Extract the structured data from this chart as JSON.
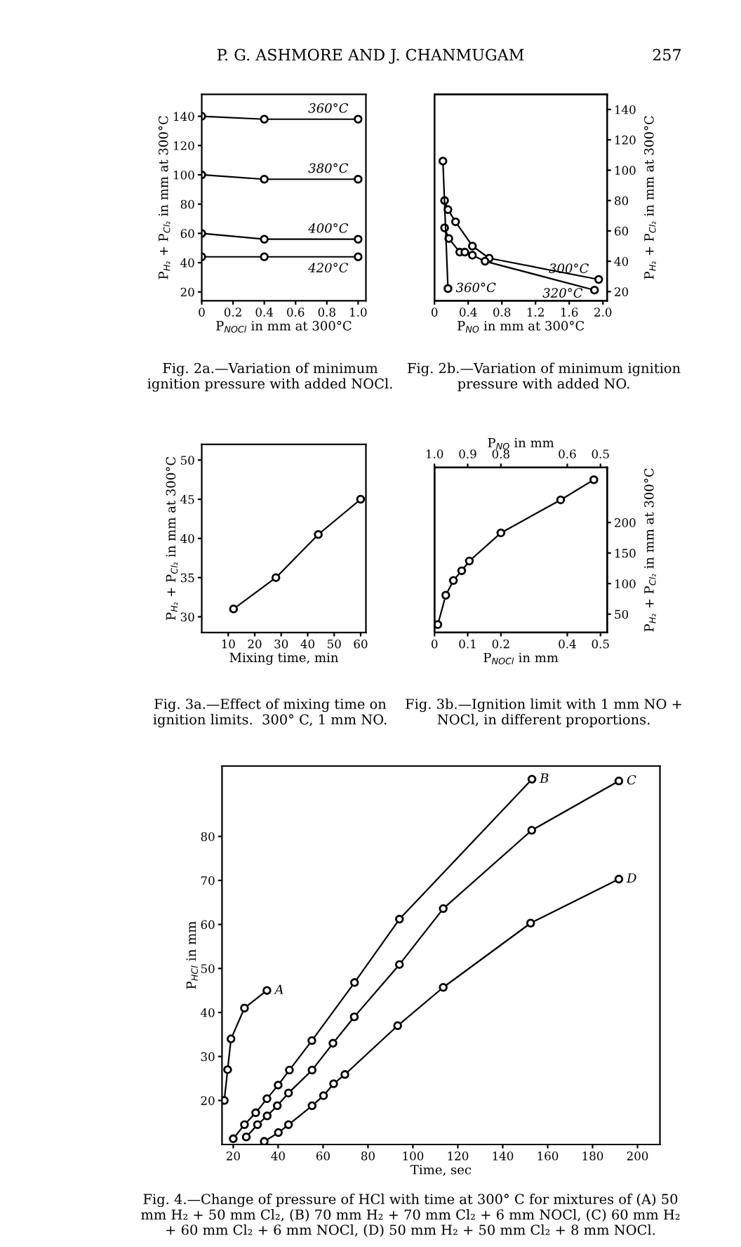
{
  "chart_data": [
    {
      "type": "line",
      "title": "Fig. 2a.—Variation of minimum ignition pressure with added NOCl.",
      "annotations": [
        "P. G. ASHMORE AND J. CHANMUGAM",
        "257"
      ],
      "xlabel": "P$_{NOCl}$ in mm at 300°C",
      "ylabel": "P$_{H₂}$ + P$_{Cl₂}$ in mm at 300°C",
      "marker": "circle",
      "line_style": "solid",
      "xlim": [
        0,
        1.05
      ],
      "xticks": [
        0,
        0.2,
        0.4,
        0.6,
        0.8,
        {
          "value": 1.0,
          "label": "1.0"
        }
      ],
      "ylim": [
        14,
        155
      ],
      "yticks": [
        20,
        40,
        60,
        80,
        100,
        120,
        140
      ],
      "series": [
        {
          "name": "360°C",
          "color": "#000000",
          "x": [
            0,
            0.4,
            1.0
          ],
          "values": [
            140,
            138,
            138
          ]
        },
        {
          "name": "380°C",
          "color": "#000000",
          "x": [
            0,
            0.4,
            1.0
          ],
          "values": [
            100,
            97,
            97
          ]
        },
        {
          "name": "400°C",
          "color": "#000000",
          "x": [
            0,
            0.4,
            1.0
          ],
          "values": [
            60,
            56,
            56
          ]
        },
        {
          "name": "420°C",
          "color": "#000000",
          "x": [
            0,
            0.4,
            1.0
          ],
          "values": [
            44,
            44,
            44
          ]
        }
      ]
    },
    {
      "type": "line",
      "title": "Fig. 2b.—Variation of minimum ignition pressure with added NO.",
      "xlabel": "P$_{NO}$ in mm at 300°C",
      "y2label": "P$_{H₂}$ + P$_{Cl₂}$ in mm at 300°C",
      "marker": "circle",
      "line_style": "solid",
      "xlim": [
        0,
        2.05
      ],
      "xticks": [
        0,
        0.4,
        0.8,
        1.2,
        1.6,
        {
          "value": 2.0,
          "label": "2.0"
        }
      ],
      "y2lim": [
        14,
        150
      ],
      "y2ticks": [
        20,
        40,
        60,
        80,
        100,
        120,
        140
      ],
      "series": [
        {
          "name": "300°C",
          "color": "#000000",
          "axis": "y2",
          "x": [
            0.12,
            0.16,
            0.25,
            0.45,
            0.65,
            1.95
          ],
          "values": [
            80,
            74,
            66,
            50,
            42,
            28
          ]
        },
        {
          "name": "320°C",
          "color": "#000000",
          "axis": "y2",
          "x": [
            0.12,
            0.17,
            0.3,
            0.36,
            0.45,
            0.6,
            1.9
          ],
          "values": [
            62,
            55,
            46,
            46,
            44,
            40,
            21
          ]
        },
        {
          "name": "360°C",
          "color": "#000000",
          "axis": "y2",
          "x": [
            0.1,
            0.16
          ],
          "values": [
            106,
            22
          ]
        }
      ]
    },
    {
      "type": "line",
      "title": "Fig. 3a.—Effect of mixing time on ignition limits.  300° C, 1 mm NO.",
      "xlabel": "Mixing time, min",
      "ylabel": "P$_{H₂}$ + P$_{Cl₂}$ in mm at 300°C",
      "marker": "circle",
      "line_style": "solid",
      "xlim": [
        0,
        62
      ],
      "xticks": [
        10,
        20,
        30,
        40,
        50,
        60
      ],
      "ylim": [
        28,
        52
      ],
      "yticks": [
        30,
        35,
        40,
        45,
        50
      ],
      "series": [
        {
          "color": "#000000",
          "x": [
            12,
            28,
            44,
            60
          ],
          "values": [
            31,
            35,
            40.5,
            45
          ]
        }
      ]
    },
    {
      "type": "line",
      "title": "Fig. 3b.—Ignition limit with 1 mm NO + NOCl, in different proportions.",
      "xlabel": "P$_{NOCl}$ in mm",
      "x2label": "P$_{NO}$ in mm",
      "y2label": "P$_{H₂}$ + P$_{Cl₂}$ in mm at 300°C",
      "marker": "circle",
      "line_style": "solid",
      "xlim": [
        0,
        0.52
      ],
      "xticks": [
        0,
        0.1,
        0.2,
        0.4,
        0.5
      ],
      "x2lim": [
        1.0,
        0.48
      ],
      "x2ticks": [
        {
          "value": 1.0,
          "label": "1.0"
        },
        0.9,
        0.8,
        0.6,
        0.5
      ],
      "y2lim": [
        20,
        290
      ],
      "y2ticks": [
        50,
        100,
        150,
        200
      ],
      "series": [
        {
          "color": "#000000",
          "axis": "y2",
          "x": [
            0.01,
            0.034,
            0.057,
            0.082,
            0.105,
            0.2,
            0.38,
            0.48
          ],
          "values": [
            33,
            81,
            105,
            121,
            137,
            183,
            237,
            270
          ]
        }
      ]
    },
    {
      "type": "line",
      "title": "Fig. 4.—Change of pressure of HCl with time at 300° C for mixtures of (A) 50 mm H₂ + 50 mm Cl₂, (B) 70 mm H₂ + 70 mm Cl₂ + 6 mm NOCl, (C) 60 mm H₂ + 60 mm Cl₂ + 6 mm NOCl, (D) 50 mm H₂ + 50 mm Cl₂ + 8 mm NOCl.",
      "xlabel": "Time, sec",
      "ylabel": "P$_{HCl}$ in mm",
      "marker": "circle",
      "line_style": "solid",
      "xlim": [
        15,
        210
      ],
      "xticks": [
        20,
        40,
        60,
        80,
        100,
        120,
        140,
        160,
        180,
        200
      ],
      "ylim": [
        10,
        96
      ],
      "yticks": [
        20,
        30,
        40,
        50,
        60,
        70,
        80
      ],
      "series": [
        {
          "name": "A",
          "color": "#000000",
          "x": [
            16,
            17.5,
            19,
            25,
            35
          ],
          "values": [
            20,
            27,
            34,
            41,
            45
          ]
        },
        {
          "name": "B",
          "color": "#000000",
          "x": [
            20,
            25,
            30,
            35,
            40,
            45,
            55,
            74,
            94,
            153
          ],
          "values": [
            11.3,
            14.5,
            17.2,
            20.4,
            23.5,
            26.9,
            33.6,
            46.8,
            61.2,
            93
          ]
        },
        {
          "name": "C",
          "color": "#000000",
          "x": [
            25.8,
            30.8,
            35.1,
            39.6,
            44.6,
            55.1,
            64.4,
            73.9,
            94,
            113.5,
            152.9,
            191.7
          ],
          "values": [
            11.7,
            14.5,
            16.5,
            18.8,
            21.7,
            26.9,
            33,
            39,
            50.9,
            63.6,
            81.4,
            92.6
          ]
        },
        {
          "name": "D",
          "color": "#000000",
          "x": [
            33.8,
            40.1,
            44.6,
            55.1,
            60.2,
            64.7,
            69.7,
            93.2,
            113.5,
            152.4,
            191.7
          ],
          "values": [
            10.7,
            12.7,
            14.5,
            18.8,
            21.1,
            23.8,
            25.9,
            37,
            45.7,
            60.3,
            70.3
          ]
        }
      ]
    }
  ]
}
